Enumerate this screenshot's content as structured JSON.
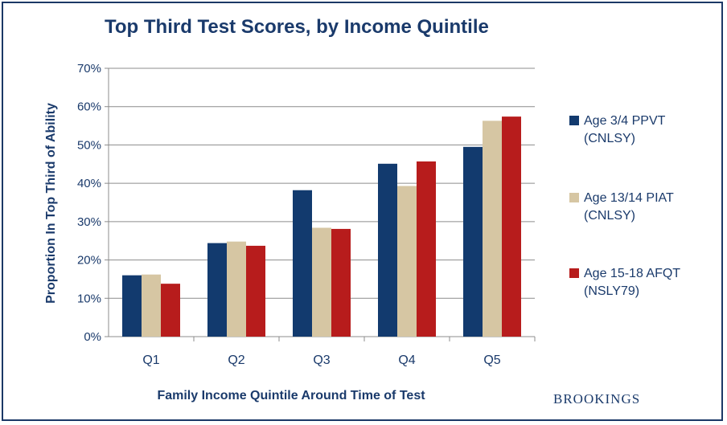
{
  "title": "Top Third Test Scores, by Income Quintile",
  "brand": "BROOKINGS",
  "colors": {
    "frame": "#1b3866",
    "text": "#1a3a6b",
    "grid": "#8c8c8c"
  },
  "chart_data": {
    "type": "bar",
    "title": "Top Third Test Scores, by Income Quintile",
    "xlabel": "Family Income Quintile  Around Time of Test",
    "ylabel": "Proportion In Top Third of Ability",
    "categories": [
      "Q1",
      "Q2",
      "Q3",
      "Q4",
      "Q5"
    ],
    "ylim": [
      0,
      70
    ],
    "yticks": [
      0,
      10,
      20,
      30,
      40,
      50,
      60,
      70
    ],
    "ytick_labels": [
      "0%",
      "10%",
      "20%",
      "30%",
      "40%",
      "50%",
      "60%",
      "70%"
    ],
    "grid": true,
    "legend_position": "right",
    "series": [
      {
        "name": "Age 3/4 PPVT (CNLSY)",
        "name_lines": [
          "Age 3/4 PPVT",
          "(CNLSY)"
        ],
        "color": "#123a6e",
        "values": [
          16,
          24.4,
          38.2,
          45.1,
          49.5
        ]
      },
      {
        "name": "Age 13/14 PIAT (CNLSY)",
        "name_lines": [
          "Age 13/14 PIAT",
          "(CNLSY)"
        ],
        "color": "#d6c6a3",
        "values": [
          16.2,
          24.8,
          28.4,
          39.3,
          56.3
        ]
      },
      {
        "name": "Age 15-18 AFQT (NSLY79)",
        "name_lines": [
          "Age 15-18 AFQT",
          "(NSLY79)"
        ],
        "color": "#b71c1c",
        "values": [
          13.8,
          23.7,
          28.1,
          45.7,
          57.4
        ]
      }
    ]
  }
}
